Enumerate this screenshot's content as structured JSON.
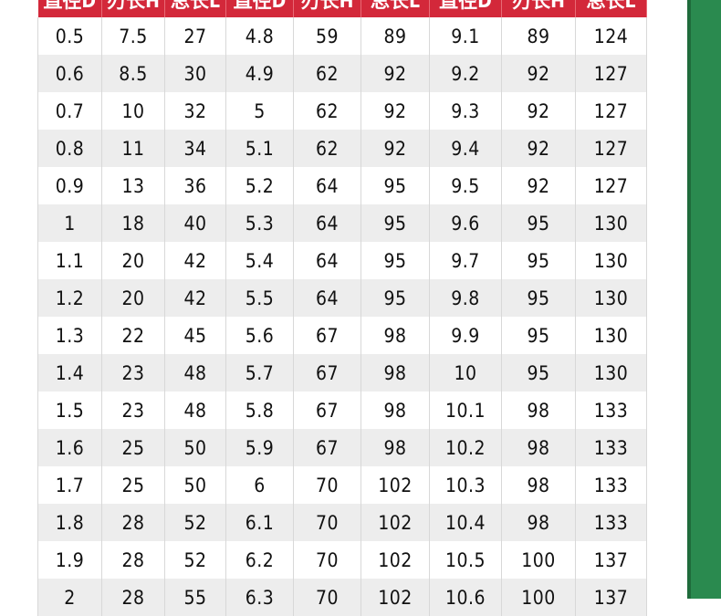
{
  "headers": [
    "直径D",
    "刃长H",
    "总长L",
    "直径D",
    "刃长H",
    "总长L",
    "直径D",
    "刃长H",
    "总长L"
  ],
  "rows": [
    [
      "0.5",
      "7.5",
      "27",
      "4.8",
      "59",
      "89",
      "9.1",
      "89",
      "124"
    ],
    [
      "0.6",
      "8.5",
      "30",
      "4.9",
      "62",
      "92",
      "9.2",
      "92",
      "127"
    ],
    [
      "0.7",
      "10",
      "32",
      "5",
      "62",
      "92",
      "9.3",
      "92",
      "127"
    ],
    [
      "0.8",
      "11",
      "34",
      "5.1",
      "62",
      "92",
      "9.4",
      "92",
      "127"
    ],
    [
      "0.9",
      "13",
      "36",
      "5.2",
      "64",
      "95",
      "9.5",
      "92",
      "127"
    ],
    [
      "1",
      "18",
      "40",
      "5.3",
      "64",
      "95",
      "9.6",
      "95",
      "130"
    ],
    [
      "1.1",
      "20",
      "42",
      "5.4",
      "64",
      "95",
      "9.7",
      "95",
      "130"
    ],
    [
      "1.2",
      "20",
      "42",
      "5.5",
      "64",
      "95",
      "9.8",
      "95",
      "130"
    ],
    [
      "1.3",
      "22",
      "45",
      "5.6",
      "67",
      "98",
      "9.9",
      "95",
      "130"
    ],
    [
      "1.4",
      "23",
      "48",
      "5.7",
      "67",
      "98",
      "10",
      "95",
      "130"
    ],
    [
      "1.5",
      "23",
      "48",
      "5.8",
      "67",
      "98",
      "10.1",
      "98",
      "133"
    ],
    [
      "1.6",
      "25",
      "50",
      "5.9",
      "67",
      "98",
      "10.2",
      "98",
      "133"
    ],
    [
      "1.7",
      "25",
      "50",
      "6",
      "70",
      "102",
      "10.3",
      "98",
      "133"
    ],
    [
      "1.8",
      "28",
      "52",
      "6.1",
      "70",
      "102",
      "10.4",
      "98",
      "133"
    ],
    [
      "1.9",
      "28",
      "52",
      "6.2",
      "70",
      "102",
      "10.5",
      "100",
      "137"
    ],
    [
      "2",
      "28",
      "55",
      "6.3",
      "70",
      "102",
      "10.6",
      "100",
      "137"
    ]
  ],
  "colors": {
    "header": "#d3283a",
    "side_bar": "#2a8a4f",
    "alt_row": "#ededed"
  }
}
